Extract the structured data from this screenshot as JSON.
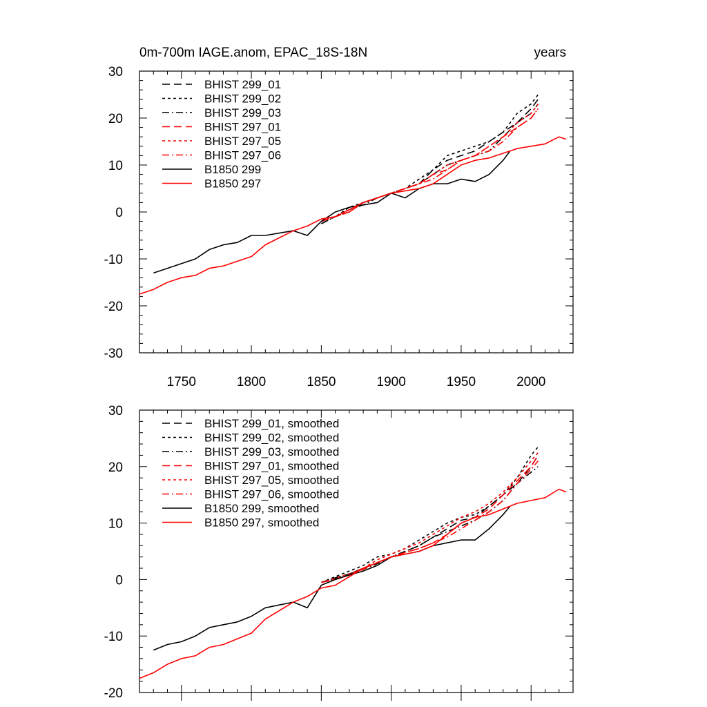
{
  "chart_data": [
    {
      "type": "line",
      "title": "0m-700m IAGE.anom, EPAC_18S-18N",
      "units": "years",
      "xlim": [
        1720,
        2030
      ],
      "ylim": [
        -30,
        30
      ],
      "xticks": [
        "1750",
        "1800",
        "1850",
        "1900",
        "1950",
        "2000"
      ],
      "yticks": [
        "-30",
        "-20",
        "-10",
        "0",
        "10",
        "20",
        "30"
      ],
      "grid": false,
      "legend_position": "top-left",
      "series": [
        {
          "name": "BHIST 299_01",
          "color": "#000000",
          "dash": "long-dash",
          "x": [
            1850,
            1860,
            1870,
            1880,
            1890,
            1900,
            1910,
            1920,
            1930,
            1940,
            1950,
            1960,
            1970,
            1980,
            1990,
            2000,
            2005
          ],
          "y": [
            -2.5,
            -1,
            0,
            2,
            3,
            4,
            5,
            6,
            9,
            11,
            12,
            13,
            15,
            17,
            19,
            22,
            24
          ]
        },
        {
          "name": "BHIST 299_02",
          "color": "#000000",
          "dash": "short-dash",
          "x": [
            1850,
            1860,
            1870,
            1880,
            1890,
            1900,
            1910,
            1920,
            1930,
            1940,
            1950,
            1960,
            1970,
            1980,
            1990,
            2000,
            2005
          ],
          "y": [
            -2,
            -1,
            1,
            2,
            3,
            4,
            5,
            7,
            9,
            12,
            13,
            14,
            15,
            17,
            21,
            23,
            25
          ]
        },
        {
          "name": "BHIST 299_03",
          "color": "#000000",
          "dash": "dash-dot",
          "x": [
            1850,
            1860,
            1870,
            1880,
            1890,
            1900,
            1910,
            1920,
            1930,
            1940,
            1950,
            1960,
            1970,
            1980,
            1990,
            2000,
            2005
          ],
          "y": [
            -2.5,
            -1,
            0.5,
            1.5,
            3,
            4,
            5,
            6,
            8,
            10,
            11,
            12,
            13,
            16,
            19,
            21,
            23
          ]
        },
        {
          "name": "BHIST 297_01",
          "color": "#ff0000",
          "dash": "long-dash",
          "x": [
            1850,
            1860,
            1870,
            1880,
            1890,
            1900,
            1910,
            1920,
            1930,
            1940,
            1950,
            1960,
            1970,
            1980,
            1990,
            2000,
            2005
          ],
          "y": [
            -2,
            -1,
            0,
            2,
            3,
            4,
            5,
            6,
            8,
            9,
            11,
            12,
            14,
            16,
            18,
            20,
            22
          ]
        },
        {
          "name": "BHIST 297_05",
          "color": "#ff0000",
          "dash": "short-dash",
          "x": [
            1850,
            1860,
            1870,
            1880,
            1890,
            1900,
            1910,
            1920,
            1930,
            1940,
            1950,
            1960,
            1970,
            1980,
            1990,
            2000,
            2005
          ],
          "y": [
            -2,
            -1,
            0,
            2,
            3,
            4,
            5,
            6,
            8,
            10,
            11,
            12,
            14,
            16,
            19,
            21,
            23
          ]
        },
        {
          "name": "BHIST 297_06",
          "color": "#ff0000",
          "dash": "dash-dot",
          "x": [
            1850,
            1860,
            1870,
            1880,
            1890,
            1900,
            1910,
            1920,
            1930,
            1940,
            1950,
            1960,
            1970,
            1980,
            1990,
            2000,
            2005
          ],
          "y": [
            -2,
            -1,
            0,
            2,
            3,
            4,
            5,
            6,
            7,
            9,
            11,
            12,
            13,
            15,
            18,
            20,
            22
          ]
        },
        {
          "name": "B1850 299",
          "color": "#000000",
          "dash": "solid",
          "x": [
            1730,
            1740,
            1750,
            1760,
            1770,
            1780,
            1790,
            1800,
            1810,
            1820,
            1830,
            1840,
            1850,
            1860,
            1870,
            1880,
            1890,
            1900,
            1910,
            1920,
            1930,
            1940,
            1950,
            1960,
            1970,
            1980,
            1985
          ],
          "y": [
            -13,
            -12,
            -11,
            -10,
            -8,
            -7,
            -6.5,
            -5,
            -5,
            -4.5,
            -4,
            -5,
            -2,
            0,
            1,
            1.5,
            2,
            4,
            3,
            5,
            6,
            6,
            7,
            6.5,
            8,
            11,
            13
          ]
        },
        {
          "name": "B1850 297",
          "color": "#ff0000",
          "dash": "solid",
          "x": [
            1720,
            1730,
            1740,
            1750,
            1760,
            1770,
            1780,
            1790,
            1800,
            1810,
            1820,
            1830,
            1840,
            1850,
            1860,
            1870,
            1880,
            1890,
            1900,
            1910,
            1920,
            1930,
            1940,
            1950,
            1960,
            1970,
            1980,
            1990,
            2000,
            2010,
            2020,
            2025
          ],
          "y": [
            -17.5,
            -16.5,
            -15,
            -14,
            -13.5,
            -12,
            -11.5,
            -10.5,
            -9.5,
            -7,
            -5.5,
            -4,
            -3,
            -1.5,
            -1,
            0.5,
            2,
            3,
            4,
            4.5,
            5,
            6,
            8,
            10,
            11,
            11.5,
            12.5,
            13.5,
            14,
            14.5,
            16,
            15.5
          ]
        }
      ]
    },
    {
      "type": "line",
      "title": "",
      "xlim": [
        1720,
        2030
      ],
      "ylim": [
        -20,
        30
      ],
      "yticks": [
        "-20",
        "-10",
        "0",
        "10",
        "20",
        "30"
      ],
      "grid": false,
      "legend_position": "top-left",
      "series": [
        {
          "name": "BHIST 299_01, smoothed",
          "color": "#000000",
          "dash": "long-dash",
          "x": [
            1850,
            1860,
            1870,
            1880,
            1890,
            1900,
            1910,
            1920,
            1930,
            1940,
            1950,
            1960,
            1970,
            1980,
            1990,
            2000,
            2005
          ],
          "y": [
            -0.5,
            0.3,
            1,
            2,
            3,
            4,
            5,
            6,
            7.5,
            9,
            10.5,
            11,
            13,
            15,
            17,
            20,
            22
          ]
        },
        {
          "name": "BHIST 299_02, smoothed",
          "color": "#000000",
          "dash": "short-dash",
          "x": [
            1850,
            1860,
            1870,
            1880,
            1890,
            1900,
            1910,
            1920,
            1930,
            1940,
            1950,
            1960,
            1970,
            1980,
            1990,
            2000,
            2005
          ],
          "y": [
            -0.5,
            0.5,
            1.5,
            2.5,
            4,
            4.5,
            5.5,
            7,
            8.5,
            10,
            11,
            11.5,
            13,
            15,
            18,
            22,
            23.5
          ]
        },
        {
          "name": "BHIST 299_03, smoothed",
          "color": "#000000",
          "dash": "dash-dot",
          "x": [
            1850,
            1860,
            1870,
            1880,
            1890,
            1900,
            1910,
            1920,
            1930,
            1940,
            1950,
            1960,
            1970,
            1980,
            1990,
            2000,
            2005
          ],
          "y": [
            -0.5,
            0.2,
            1,
            1.8,
            2.8,
            4,
            5,
            6,
            7.5,
            8.5,
            9.5,
            10.5,
            12,
            14,
            17,
            19,
            20
          ]
        },
        {
          "name": "BHIST 297_01, smoothed",
          "color": "#ff0000",
          "dash": "long-dash",
          "x": [
            1850,
            1860,
            1870,
            1880,
            1890,
            1900,
            1910,
            1920,
            1930,
            1940,
            1950,
            1960,
            1970,
            1980,
            1990,
            2000,
            2005
          ],
          "y": [
            -0.5,
            0,
            0.8,
            2,
            3,
            4,
            4.8,
            5.5,
            6.5,
            8,
            10,
            11,
            12.5,
            15,
            17.5,
            20,
            22
          ]
        },
        {
          "name": "BHIST 297_05, smoothed",
          "color": "#ff0000",
          "dash": "short-dash",
          "x": [
            1850,
            1860,
            1870,
            1880,
            1890,
            1900,
            1910,
            1920,
            1930,
            1940,
            1950,
            1960,
            1970,
            1980,
            1990,
            2000,
            2005
          ],
          "y": [
            -0.5,
            0.2,
            1,
            2,
            3.5,
            4.5,
            5.5,
            6.5,
            8,
            9.5,
            11,
            12,
            13.5,
            15.5,
            18,
            21,
            22.5
          ]
        },
        {
          "name": "BHIST 297_06, smoothed",
          "color": "#ff0000",
          "dash": "dash-dot",
          "x": [
            1850,
            1860,
            1870,
            1880,
            1890,
            1900,
            1910,
            1920,
            1930,
            1940,
            1950,
            1960,
            1970,
            1980,
            1990,
            2000,
            2005
          ],
          "y": [
            -0.5,
            0,
            0.8,
            1.8,
            3,
            4,
            4.8,
            5.5,
            6.5,
            7.5,
            9,
            10.5,
            12,
            14,
            17,
            19.5,
            21
          ]
        },
        {
          "name": "B1850 299, smoothed",
          "color": "#000000",
          "dash": "solid",
          "x": [
            1730,
            1740,
            1750,
            1760,
            1770,
            1780,
            1790,
            1800,
            1810,
            1820,
            1830,
            1840,
            1850,
            1860,
            1870,
            1880,
            1890,
            1900,
            1910,
            1920,
            1930,
            1940,
            1950,
            1960,
            1970,
            1980,
            1985
          ],
          "y": [
            -12.5,
            -11.5,
            -11,
            -10,
            -8.5,
            -8,
            -7.5,
            -6.5,
            -5,
            -4.5,
            -4,
            -5,
            -1,
            0,
            0.8,
            1.5,
            2.5,
            4,
            4.5,
            5,
            6,
            6.5,
            7,
            7,
            9,
            11.5,
            13
          ]
        },
        {
          "name": "B1850 297, smoothed",
          "color": "#ff0000",
          "dash": "solid",
          "x": [
            1720,
            1730,
            1740,
            1750,
            1760,
            1770,
            1780,
            1790,
            1800,
            1810,
            1820,
            1830,
            1840,
            1850,
            1860,
            1870,
            1880,
            1890,
            1900,
            1910,
            1920,
            1930,
            1940,
            1950,
            1960,
            1970,
            1980,
            1990,
            2000,
            2010,
            2020,
            2025
          ],
          "y": [
            -17.5,
            -16.5,
            -15,
            -14,
            -13.5,
            -12,
            -11.5,
            -10.5,
            -9.5,
            -7,
            -5.5,
            -4,
            -3,
            -1.5,
            -1,
            0.5,
            2,
            3,
            4,
            4.5,
            5,
            6,
            8,
            10,
            11,
            11.5,
            12.5,
            13.5,
            14,
            14.5,
            16,
            15.5
          ]
        }
      ]
    }
  ]
}
